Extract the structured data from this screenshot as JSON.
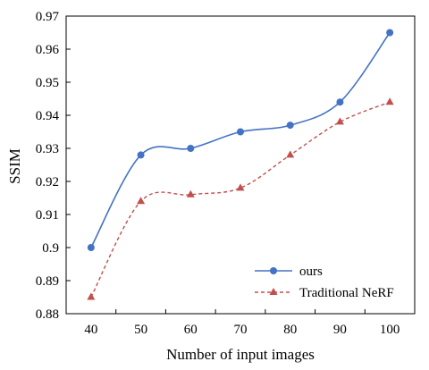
{
  "chart_data": {
    "type": "line",
    "title": "",
    "xlabel": "Number of input images",
    "ylabel": "SSIM",
    "x": [
      40,
      50,
      60,
      70,
      80,
      90,
      100
    ],
    "x_tick_labels": [
      "40",
      "50",
      "60",
      "70",
      "80",
      "90",
      "100"
    ],
    "ylim": [
      0.88,
      0.97
    ],
    "y_ticks": [
      0.88,
      0.89,
      0.9,
      0.91,
      0.92,
      0.93,
      0.94,
      0.95,
      0.96,
      0.97
    ],
    "y_tick_labels": [
      "0.88",
      "0.89",
      "0.9",
      "0.91",
      "0.92",
      "0.93",
      "0.94",
      "0.95",
      "0.96",
      "0.97"
    ],
    "grid": false,
    "legend_position": "bottom-right",
    "series": [
      {
        "name": "ours",
        "values": [
          0.9,
          0.928,
          0.93,
          0.935,
          0.937,
          0.944,
          0.965
        ],
        "color": "#4472c4",
        "marker": "circle",
        "line_style": "solid"
      },
      {
        "name": "Traditional NeRF",
        "values": [
          0.885,
          0.914,
          0.916,
          0.918,
          0.928,
          0.938,
          0.944
        ],
        "color": "#c0504d",
        "marker": "triangle",
        "line_style": "dashed"
      }
    ]
  }
}
